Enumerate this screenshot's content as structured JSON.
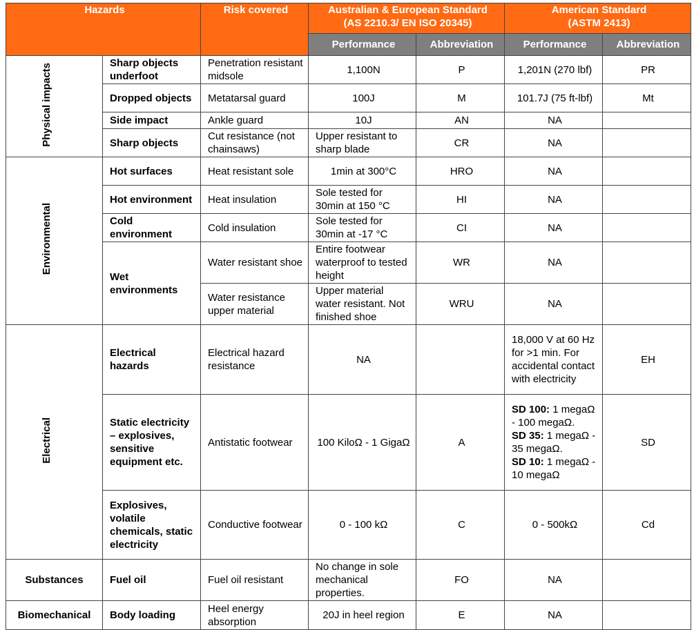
{
  "header": {
    "hazards": "Hazards",
    "risk": "Risk covered",
    "au": {
      "title": "Australian & European Standard",
      "subtitle": "(AS 2210.3/ EN ISO 20345)",
      "performance": "Performance",
      "abbreviation": "Abbreviation"
    },
    "us": {
      "title": "American Standard",
      "subtitle": "(ASTM 2413)",
      "performance": "Performance",
      "abbreviation": "Abbreviation"
    }
  },
  "groups": [
    {
      "name": "Physical impacts",
      "vertical": true,
      "hazards": [
        {
          "name": "Sharp objects underfoot",
          "risks": [
            {
              "risk": "Penetration resistant midsole",
              "au_perf": "1,100N",
              "au_abbr": "P",
              "us_perf": "1,201N (270 lbf)",
              "us_abbr": "PR"
            }
          ]
        },
        {
          "name": "Dropped objects",
          "risks": [
            {
              "risk": "Metatarsal guard",
              "au_perf": "100J",
              "au_abbr": "M",
              "us_perf": "101.7J (75 ft-lbf)",
              "us_abbr": "Mt"
            }
          ]
        },
        {
          "name": "Side impact",
          "risks": [
            {
              "risk": "Ankle guard",
              "au_perf": "10J",
              "au_abbr": "AN",
              "us_perf": "NA"
            }
          ]
        },
        {
          "name": "Sharp objects",
          "risks": [
            {
              "risk": "Cut resistance (not chainsaws)",
              "au_perf": "Upper resistant to sharp blade",
              "au_abbr": "CR",
              "us_perf": "NA"
            }
          ]
        }
      ]
    },
    {
      "name": "Environmental",
      "vertical": true,
      "hazards": [
        {
          "name": "Hot surfaces",
          "risks": [
            {
              "risk": "Heat resistant sole",
              "au_perf": "1min at 300°C",
              "au_abbr": "HRO",
              "us_perf": "NA"
            }
          ]
        },
        {
          "name": "Hot environment",
          "risks": [
            {
              "risk": "Heat insulation",
              "au_perf": "Sole tested for 30min at 150 °C",
              "au_abbr": "HI",
              "us_perf": "NA"
            }
          ]
        },
        {
          "name": "Cold environment",
          "risks": [
            {
              "risk": "Cold insulation",
              "au_perf": "Sole tested for 30min at -17 °C",
              "au_abbr": "CI",
              "us_perf": "NA"
            }
          ]
        },
        {
          "name": "Wet environments",
          "risks": [
            {
              "risk": "Water resistant shoe",
              "au_perf": "Entire footwear waterproof to tested height",
              "au_abbr": "WR",
              "us_perf": "NA"
            },
            {
              "risk": "Water resistance upper material",
              "au_perf": "Upper material water resistant. Not finished shoe",
              "au_abbr": "WRU",
              "us_perf": "NA"
            }
          ]
        }
      ]
    },
    {
      "name": "Electrical",
      "vertical": true,
      "hazards": [
        {
          "name": "Electrical hazards",
          "risks": [
            {
              "risk": "Electrical hazard resistance",
              "au_perf": "NA",
              "us_perf": "18,000 V at 60 Hz for >1 min. For accidental contact with electricity",
              "us_abbr": "EH"
            }
          ]
        },
        {
          "name": "Static electricity – explosives, sensitive equipment etc.",
          "risks": [
            {
              "risk": "Antistatic footwear",
              "au_perf": "100 KiloΩ - 1 GigaΩ",
              "au_abbr": "A",
              "us_perf_parts": [
                {
                  "code": "SD 100:",
                  "text": " 1 megaΩ - 100 megaΩ."
                },
                {
                  "code": "SD 35:",
                  "text": " 1 megaΩ - 35 megaΩ."
                },
                {
                  "code": "SD 10:",
                  "text": " 1 megaΩ - 10 megaΩ"
                }
              ],
              "us_abbr": "SD"
            }
          ]
        },
        {
          "name": "Explosives, volatile chemicals, static electricity",
          "risks": [
            {
              "risk": "Conductive footwear",
              "au_perf": "0 - 100 kΩ",
              "au_abbr": "C",
              "us_perf": "0 - 500kΩ",
              "us_abbr": "Cd"
            }
          ]
        }
      ]
    },
    {
      "name": "Substances",
      "vertical": false,
      "hazards": [
        {
          "name": "Fuel oil",
          "risks": [
            {
              "risk": "Fuel oil resistant",
              "au_perf": "No change in sole mechanical properties.",
              "au_abbr": "FO",
              "us_perf": "NA"
            }
          ]
        }
      ]
    },
    {
      "name": "Biomechanical",
      "vertical": false,
      "hazards": [
        {
          "name": "Body loading",
          "risks": [
            {
              "risk": "Heel energy absorption",
              "au_perf": "20J in heel region",
              "au_abbr": "E",
              "us_perf": "NA"
            }
          ]
        }
      ]
    }
  ]
}
